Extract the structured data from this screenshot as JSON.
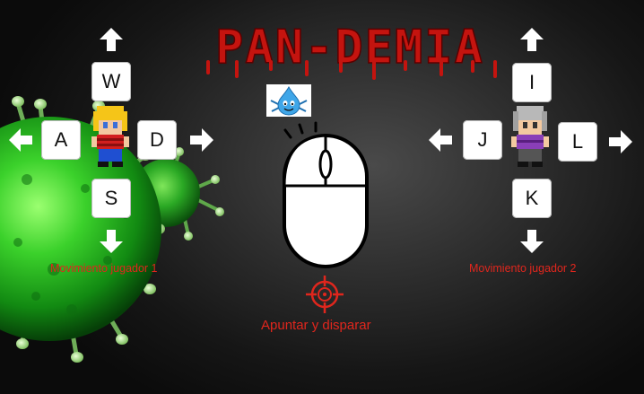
{
  "title": "PAN-DEMIA",
  "player1": {
    "keys": {
      "up": "W",
      "left": "A",
      "right": "D",
      "down": "S"
    },
    "caption": "Movimiento jugador 1"
  },
  "player2": {
    "keys": {
      "up": "I",
      "left": "J",
      "right": "L",
      "down": "K"
    },
    "caption": "Movimiento jugador 2"
  },
  "mouse": {
    "caption": "Apuntar y disparar",
    "icon": "mouse-icon",
    "crosshair_icon": "crosshair-icon"
  },
  "colors": {
    "title_red": "#c4140f",
    "caption_red": "#e0261d",
    "virus_green": "#3bd12b",
    "key_bg": "#ffffff"
  }
}
